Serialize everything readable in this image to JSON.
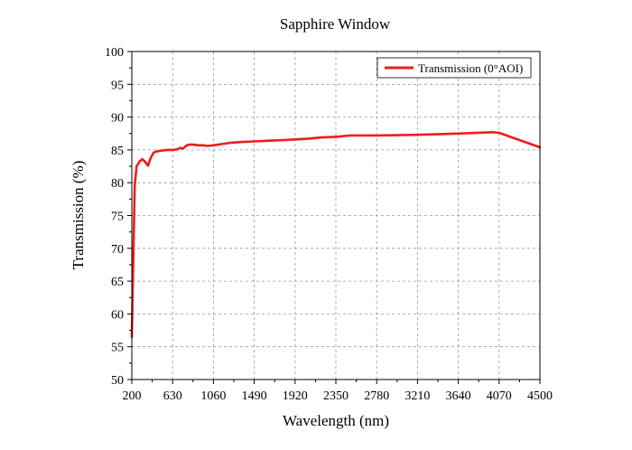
{
  "chart_data": {
    "type": "line",
    "title": "Sapphire Window",
    "xlabel": "Wavelength (nm)",
    "ylabel": "Transmission (%)",
    "xlim": [
      200,
      4500
    ],
    "ylim": [
      50,
      100
    ],
    "xticks": [
      200,
      630,
      1060,
      1490,
      1920,
      2350,
      2780,
      3210,
      3640,
      4070,
      4500
    ],
    "yticks": [
      50,
      55,
      60,
      65,
      70,
      75,
      80,
      85,
      90,
      95,
      100
    ],
    "grid": true,
    "legend_position": "top-right",
    "series": [
      {
        "name": "Transmission (0°AOI)",
        "color": "#ee1c1c",
        "points": [
          [
            200,
            56.5
          ],
          [
            215,
            68
          ],
          [
            230,
            79.5
          ],
          [
            250,
            82.5
          ],
          [
            280,
            83.2
          ],
          [
            310,
            83.6
          ],
          [
            340,
            83.2
          ],
          [
            370,
            82.6
          ],
          [
            400,
            83.8
          ],
          [
            430,
            84.6
          ],
          [
            470,
            84.8
          ],
          [
            520,
            84.9
          ],
          [
            570,
            85.0
          ],
          [
            630,
            85.0
          ],
          [
            680,
            85.1
          ],
          [
            710,
            85.3
          ],
          [
            740,
            85.2
          ],
          [
            770,
            85.6
          ],
          [
            800,
            85.8
          ],
          [
            850,
            85.8
          ],
          [
            900,
            85.7
          ],
          [
            950,
            85.7
          ],
          [
            1000,
            85.6
          ],
          [
            1060,
            85.7
          ],
          [
            1150,
            85.9
          ],
          [
            1250,
            86.1
          ],
          [
            1350,
            86.2
          ],
          [
            1490,
            86.3
          ],
          [
            1650,
            86.4
          ],
          [
            1800,
            86.5
          ],
          [
            1920,
            86.6
          ],
          [
            2050,
            86.7
          ],
          [
            2200,
            86.9
          ],
          [
            2350,
            87.0
          ],
          [
            2500,
            87.2
          ],
          [
            2780,
            87.2
          ],
          [
            3210,
            87.3
          ],
          [
            3640,
            87.5
          ],
          [
            4000,
            87.7
          ],
          [
            4070,
            87.6
          ],
          [
            4500,
            85.4
          ]
        ]
      }
    ]
  }
}
